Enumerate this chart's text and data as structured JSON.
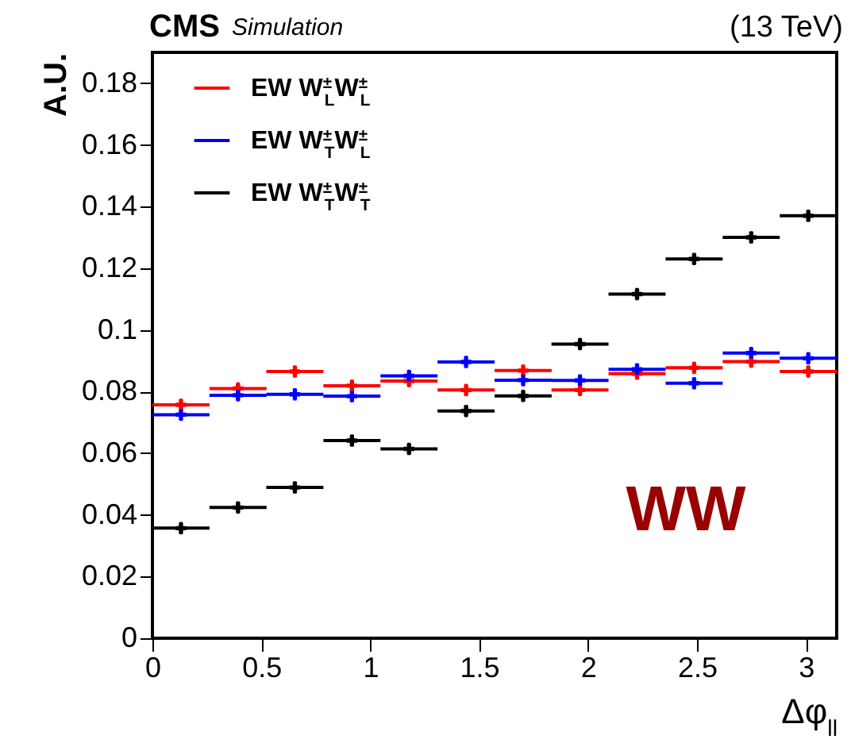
{
  "chart_data": {
    "type": "scatter",
    "marker": "cross",
    "legend": "top left",
    "grid": false,
    "xlabel": "Δφ$_{ll}$",
    "ylabel": "A.U.",
    "annotations": [
      "CMS",
      "Simulation",
      "(13 TeV)",
      "WW"
    ],
    "x": [
      0.131,
      0.393,
      0.654,
      0.916,
      1.178,
      1.44,
      1.702,
      1.963,
      2.225,
      2.487,
      2.749,
      3.011
    ],
    "xlim": [
      0,
      3.1416
    ],
    "xticks": [
      0,
      0.5,
      1,
      1.5,
      2,
      2.5,
      3
    ],
    "ylim": [
      0,
      0.19
    ],
    "yticks": [
      0,
      0.02,
      0.04,
      0.06,
      0.08,
      0.1,
      0.12,
      0.14,
      0.16,
      0.18
    ],
    "series": [
      {
        "name": "EW W$^{±}$$_{L}$W$^{±}$$_{L}$",
        "color": "#ff0000",
        "values": [
          0.0757,
          0.081,
          0.0865,
          0.0819,
          0.0834,
          0.0805,
          0.0868,
          0.0805,
          0.0858,
          0.0877,
          0.0897,
          0.0865
        ],
        "errors": [
          0.002,
          0.002,
          0.002,
          0.002,
          0.002,
          0.002,
          0.002,
          0.002,
          0.002,
          0.002,
          0.002,
          0.002
        ],
        "xerrors": [
          0.131,
          0.131,
          0.131,
          0.131,
          0.131,
          0.131,
          0.131,
          0.131,
          0.131,
          0.131,
          0.131,
          0.131
        ]
      },
      {
        "name": "EW W$^{±}$$_{T}$W$^{±}$$_{L}$",
        "color": "#0000ff",
        "values": [
          0.0725,
          0.0788,
          0.0791,
          0.0785,
          0.0851,
          0.0896,
          0.0837,
          0.0836,
          0.0872,
          0.0827,
          0.0925,
          0.0908
        ],
        "errors": [
          0.002,
          0.002,
          0.002,
          0.002,
          0.002,
          0.002,
          0.002,
          0.002,
          0.002,
          0.002,
          0.002,
          0.002
        ],
        "xerrors": [
          0.131,
          0.131,
          0.131,
          0.131,
          0.131,
          0.131,
          0.131,
          0.131,
          0.131,
          0.131,
          0.131,
          0.131
        ]
      },
      {
        "name": "EW W$^{±}$$_{T}$W$^{±}$$_{T}$",
        "color": "#000000",
        "values": [
          0.0357,
          0.0424,
          0.0489,
          0.0641,
          0.0614,
          0.0737,
          0.0786,
          0.0954,
          0.1116,
          0.123,
          0.13,
          0.137
        ],
        "errors": [
          0.002,
          0.002,
          0.002,
          0.002,
          0.002,
          0.002,
          0.002,
          0.002,
          0.002,
          0.002,
          0.002,
          0.002
        ],
        "xerrors": [
          0.131,
          0.131,
          0.131,
          0.131,
          0.131,
          0.131,
          0.131,
          0.131,
          0.131,
          0.131,
          0.131,
          0.131
        ]
      }
    ]
  }
}
